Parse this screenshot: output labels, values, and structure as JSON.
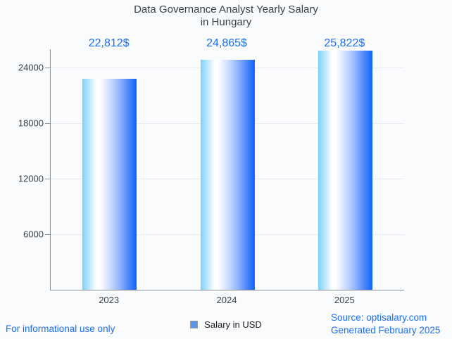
{
  "chart_data": {
    "type": "bar",
    "title": "Data Governance Analyst Yearly Salary in Hungary",
    "title_lines": [
      "Data Governance Analyst Yearly Salary",
      "in Hungary"
    ],
    "categories": [
      "2023",
      "2024",
      "2025"
    ],
    "series": [
      {
        "name": "Salary in USD",
        "values": [
          22812,
          24865,
          25822
        ]
      }
    ],
    "value_labels": [
      "22,812$",
      "24,865$",
      "25,822$"
    ],
    "ylabel": "",
    "xlabel": "",
    "y_ticks": [
      6000,
      12000,
      18000,
      24000
    ],
    "ylim": [
      0,
      26000
    ],
    "grid": true,
    "legend_position": "bottom"
  },
  "legend": {
    "label": "Salary in USD"
  },
  "footer": {
    "disclaimer": "For informational use only",
    "source": "Source: optisalary.com",
    "generated": "Generated February 2025"
  },
  "colors": {
    "background": "#fafbfd",
    "title": "#3c4043",
    "axis_label": "#3c4043",
    "axis_line": "#8d9095",
    "gridline": "#e9ebee",
    "accent_blue": "#1b6ef3",
    "bar_gradient_start": "#7cd1fb",
    "bar_gradient_mid": "#ffffff",
    "bar_gradient_end": "#0d66ff",
    "legend_swatch": "#5a96e8",
    "legend_text": "#202124"
  }
}
